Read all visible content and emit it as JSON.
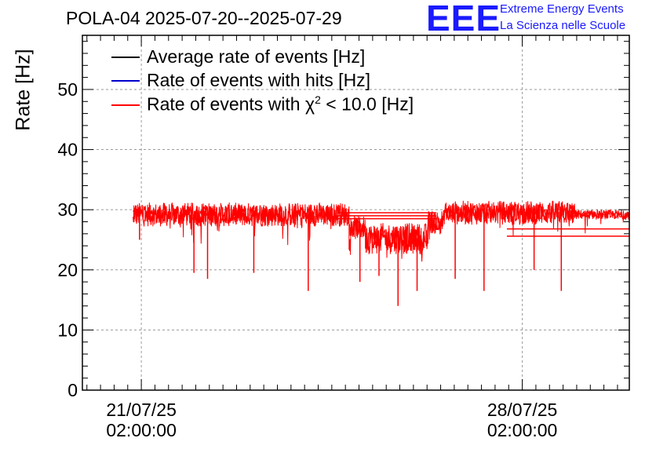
{
  "chart_data": {
    "type": "line",
    "title": "POLA-04 2025-07-20--2025-07-29",
    "xlabel": "",
    "ylabel": "Rate [Hz]",
    "ylim": [
      0,
      59
    ],
    "xlim": [
      0,
      10.05
    ],
    "x_units": "days since 2025-07-20 00:00:00",
    "yticks": [
      0,
      10,
      20,
      30,
      40,
      50
    ],
    "xticks": [
      {
        "value": 1.083,
        "label_date": "21/07/25",
        "label_time": "02:00:00"
      },
      {
        "value": 8.083,
        "label_date": "28/07/25",
        "label_time": "02:00:00"
      }
    ],
    "grid": true,
    "legend_position": "top-left",
    "series": [
      {
        "name": "Average rate of events [Hz]",
        "color": "#000000"
      },
      {
        "name": "Rate of events with hits [Hz]",
        "color": "#0000cc"
      },
      {
        "name": "Rate of events with χ² < 10.0 [Hz]",
        "color": "#ff0000",
        "segments": [
          {
            "x_start": 0.93,
            "x_end": 4.9,
            "mean": 29.2,
            "noise": 2.0
          },
          {
            "x_start": 4.9,
            "x_end": 5.2,
            "mean": 27.0,
            "noise": 2.0
          },
          {
            "x_start": 5.2,
            "x_end": 6.35,
            "mean": 25.2,
            "noise": 2.6
          },
          {
            "x_start": 6.35,
            "x_end": 6.65,
            "mean": 28.0,
            "noise": 2.0
          },
          {
            "x_start": 6.65,
            "x_end": 9.05,
            "mean": 29.5,
            "noise": 2.0
          },
          {
            "x_start": 9.05,
            "x_end": 10.05,
            "mean": 29.2,
            "noise": 0.8
          }
        ],
        "dips": [
          {
            "x": 1.05,
            "y": 25
          },
          {
            "x": 2.05,
            "y": 19.5
          },
          {
            "x": 2.3,
            "y": 18.5
          },
          {
            "x": 3.15,
            "y": 19.5
          },
          {
            "x": 4.15,
            "y": 16.5
          },
          {
            "x": 5.1,
            "y": 18
          },
          {
            "x": 5.45,
            "y": 19
          },
          {
            "x": 5.8,
            "y": 14
          },
          {
            "x": 6.15,
            "y": 16.5
          },
          {
            "x": 6.85,
            "y": 18.5
          },
          {
            "x": 7.38,
            "y": 16.5
          },
          {
            "x": 8.3,
            "y": 20
          },
          {
            "x": 8.8,
            "y": 16.5
          }
        ],
        "horizontal_lines": [
          {
            "y": 29.5,
            "x_start": 4.7,
            "x_end": 6.5
          },
          {
            "y": 29.0,
            "x_start": 4.7,
            "x_end": 6.5
          },
          {
            "y": 28.5,
            "x_start": 4.7,
            "x_end": 6.5
          },
          {
            "y": 26.8,
            "x_start": 7.8,
            "x_end": 10.05
          },
          {
            "y": 25.6,
            "x_start": 7.8,
            "x_end": 10.05
          }
        ]
      }
    ]
  },
  "logo": {
    "text": "EEE",
    "line1": "Extreme Energy Events",
    "line2": "La Scienza nelle Scuole"
  },
  "legend": {
    "avg": "Average rate of events [Hz]",
    "hits": "Rate of events with hits [Hz]",
    "chi_prefix": "Rate of events with χ",
    "chi_sup": "2",
    "chi_suffix": " < 10.0 [Hz]"
  }
}
